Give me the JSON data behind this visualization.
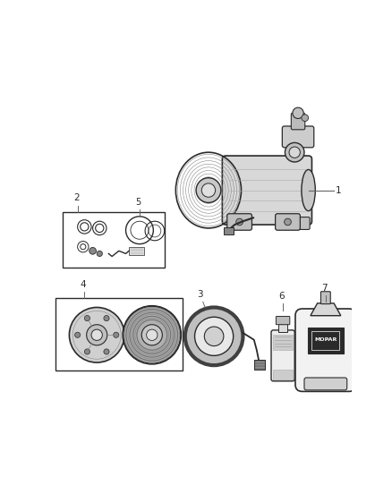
{
  "background_color": "#ffffff",
  "fig_width": 4.38,
  "fig_height": 5.33,
  "dpi": 100,
  "line_color": "#2a2a2a",
  "label_font_size": 7.5,
  "gray_light": "#e0e0e0",
  "gray_mid": "#b0b0b0",
  "gray_dark": "#707070",
  "gray_darker": "#404040"
}
